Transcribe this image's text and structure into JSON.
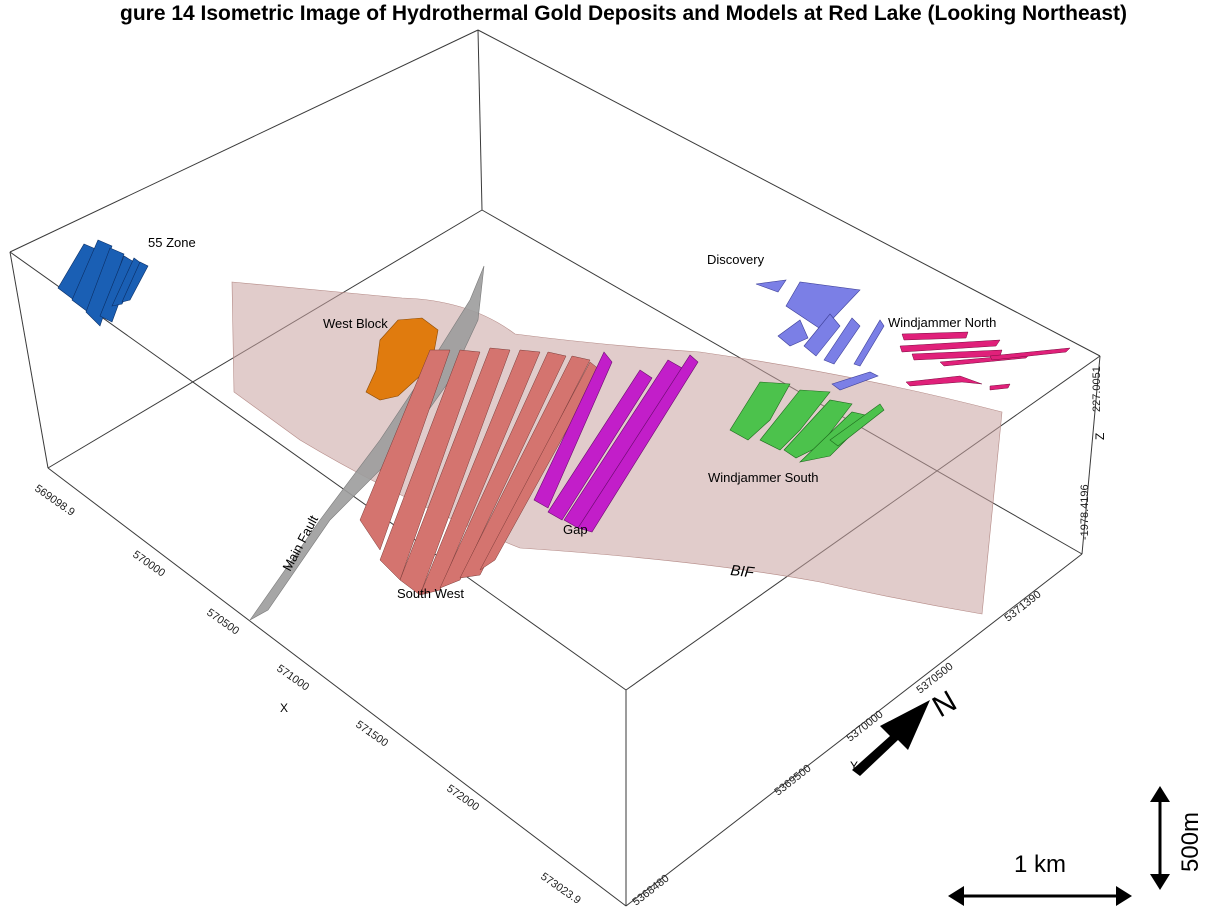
{
  "title": "gure 14 Isometric Image of Hydrothermal Gold Deposits and Models at Red Lake (Looking Northeast)",
  "labels": {
    "zone_55": "55 Zone",
    "west_block": "West Block",
    "discovery": "Discovery",
    "windjammer_north": "Windjammer North",
    "windjammer_south": "Windjammer South",
    "gap": "Gap",
    "south_west": "South West",
    "main_fault": "Main Fault",
    "bif": "BIF"
  },
  "axes": {
    "x_label": "X",
    "y_label": "Y",
    "z_label": "Z",
    "x_ticks": [
      "569098.9",
      "570000",
      "570500",
      "571000",
      "571500",
      "572000",
      "573023.9"
    ],
    "y_ticks": [
      "5368480",
      "5369500",
      "5370000",
      "5370500",
      "5371390"
    ],
    "z_ticks": [
      "-1978.4196",
      "227.0051"
    ]
  },
  "north": {
    "label": "N"
  },
  "scale": {
    "horizontal": "1 km",
    "vertical": "500m"
  },
  "colors": {
    "zone_55": "#1a5fb4",
    "west_block": "#e07b0e",
    "discovery": "#7b7fe6",
    "windjammer_north": "#e0207a",
    "windjammer_south": "#4cc24c",
    "gap": "#c21ec9",
    "south_west": "#d4746f",
    "main_fault": "#9c9c9c",
    "bif": "#c9a3a0"
  }
}
